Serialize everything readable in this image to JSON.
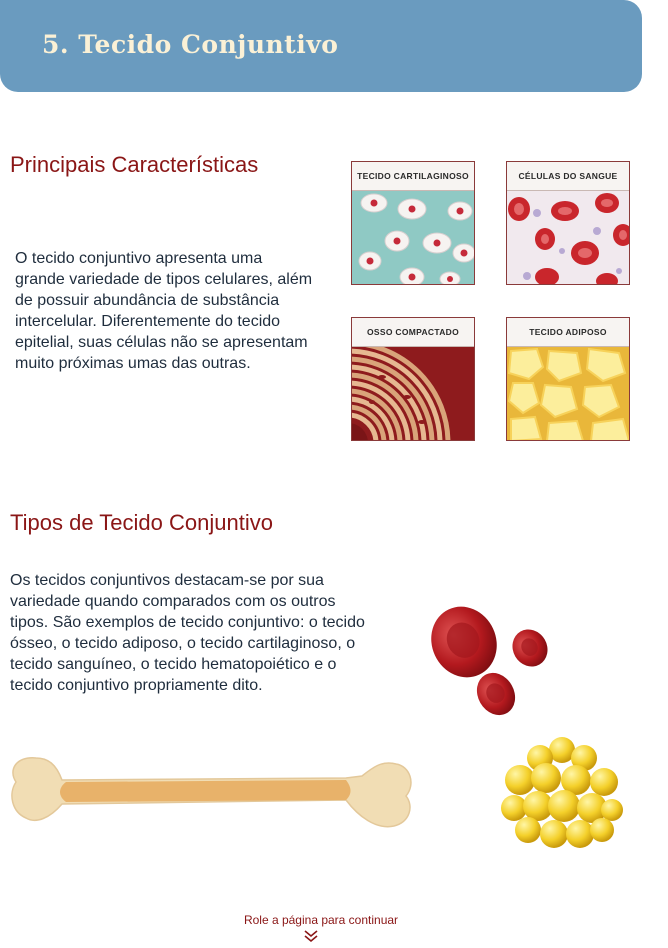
{
  "header": {
    "title": "5. Tecido Conjuntivo"
  },
  "section1": {
    "title": "Principais Características",
    "text": "O tecido conjuntivo apresenta uma grande variedade de tipos celulares, além de possuir abundância de substância intercelular. Diferentemente do tecido epitelial, suas células não se apresentam muito próximas umas das outras."
  },
  "tiles": [
    {
      "label": "TECIDO CARTILAGINOSO"
    },
    {
      "label": "CÉLULAS DO SANGUE"
    },
    {
      "label": "OSSO COMPACTADO"
    },
    {
      "label": "TECIDO ADIPOSO"
    }
  ],
  "section2": {
    "title": "Tipos de Tecido Conjuntivo",
    "text": "Os tecidos conjuntivos destacam-se por sua variedade quando comparados com os outros tipos. São exemplos de tecido conjuntivo: o tecido ósseo, o tecido adiposo, o tecido cartilaginoso, o tecido sanguíneo, o tecido hematopoiético e o tecido conjuntivo propriamente dito."
  },
  "footer": {
    "scroll_hint": "Role a página para continuar",
    "icon": "double-chevron-down-icon"
  },
  "colors": {
    "header_bg": "#6a9bbf",
    "title_red": "#8a1616",
    "header_text": "#fbf1d6"
  }
}
